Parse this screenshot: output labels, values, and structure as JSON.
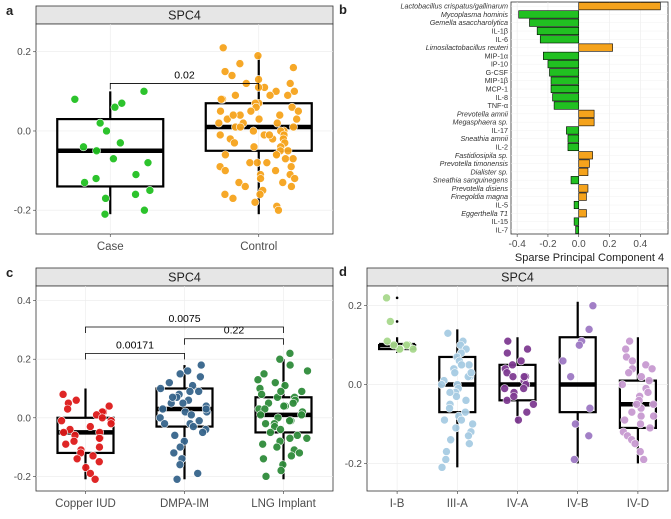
{
  "chart_data": [
    {
      "panel": "a",
      "type": "boxplot",
      "title": "SPC4",
      "categories": [
        "Case",
        "Control"
      ],
      "yticks": [
        "0.2",
        "0.0",
        "-0.2"
      ],
      "ylim": [
        -0.26,
        0.27
      ],
      "stats": [
        {
          "q1": -0.14,
          "median": -0.05,
          "q3": 0.03,
          "whisker_low": -0.21,
          "whisker_high": 0.1
        },
        {
          "q1": -0.05,
          "median": 0.01,
          "q3": 0.07,
          "whisker_low": -0.21,
          "whisker_high": 0.19
        }
      ],
      "point_colors": [
        "#21c021",
        "#f5a31c"
      ],
      "points": [
        [
          0.1,
          0.08,
          0.06,
          0.02,
          0.0,
          -0.03,
          -0.04,
          -0.05,
          -0.07,
          -0.08,
          -0.11,
          -0.13,
          -0.15,
          -0.16,
          -0.17,
          -0.2,
          -0.21,
          0.07,
          -0.12
        ],
        [
          0.21,
          0.19,
          0.17,
          0.16,
          0.15,
          0.14,
          0.13,
          0.12,
          0.12,
          0.11,
          0.1,
          0.1,
          0.09,
          0.09,
          0.08,
          0.08,
          0.07,
          0.07,
          0.06,
          0.06,
          0.05,
          0.05,
          0.04,
          0.04,
          0.03,
          0.03,
          0.02,
          0.02,
          0.02,
          0.01,
          0.01,
          0.01,
          0.0,
          0.0,
          0.0,
          -0.01,
          -0.01,
          -0.01,
          -0.02,
          -0.02,
          -0.03,
          -0.03,
          -0.04,
          -0.04,
          -0.05,
          -0.05,
          -0.06,
          -0.06,
          -0.07,
          -0.07,
          -0.08,
          -0.08,
          -0.09,
          -0.09,
          -0.1,
          -0.1,
          -0.11,
          -0.11,
          -0.12,
          -0.12,
          -0.13,
          -0.14,
          -0.14,
          -0.15,
          -0.16,
          -0.16,
          -0.17,
          -0.18,
          -0.19,
          -0.2,
          0.03,
          -0.02,
          0.05,
          -0.06,
          0.09,
          -0.13,
          0.11,
          -0.01,
          0.04,
          -0.08
        ]
      ],
      "comparisons": [
        {
          "from": 0,
          "to": 1,
          "label": "0.02",
          "y": 0.12
        }
      ]
    },
    {
      "panel": "b",
      "type": "bar",
      "orientation": "horizontal",
      "xlabel": "Sparse Principal Component 4",
      "xticks": [
        -0.4,
        -0.2,
        0.0,
        0.2,
        0.4
      ],
      "xlim": [
        -0.44,
        0.58
      ],
      "colors": {
        "negative": "#21c021",
        "positive": "#f5a31c"
      },
      "categories": [
        "Lactobacillus crispatus/gallinarum",
        "Mycoplasma hominis",
        "Gemella asaccharolytica",
        "IL-1β",
        "IL-6",
        "Limosilactobacillus reuteri",
        "MIP-1α",
        "IP-10",
        "G-CSF",
        "MIP-1β",
        "MCP-1",
        "IL-8",
        "TNF-α",
        "Prevotella amnii",
        "Megasphaera sp.",
        "IL-17",
        "Sneathia amnii",
        "IL-2",
        "Fastidiosipila sp.",
        "Prevotella timonensis",
        "Dialister sp.",
        "Sneathia sanguinegens",
        "Prevotella disiens",
        "Finegoldia magna",
        "IL-5",
        "Eggerthella T1",
        "IL-15",
        "IL-7"
      ],
      "values": [
        0.53,
        -0.39,
        -0.32,
        -0.27,
        -0.25,
        0.22,
        -0.23,
        -0.2,
        -0.19,
        -0.18,
        -0.18,
        -0.17,
        -0.16,
        0.1,
        0.1,
        -0.08,
        -0.07,
        -0.07,
        0.09,
        0.07,
        0.06,
        -0.05,
        0.06,
        0.05,
        -0.03,
        0.05,
        -0.03,
        -0.02
      ]
    },
    {
      "panel": "c",
      "type": "boxplot",
      "title": "SPC4",
      "categories": [
        "Copper IUD",
        "DMPA-IM",
        "LNG Implant"
      ],
      "yticks": [
        "0.4",
        "0.2",
        "0.0",
        "-0.2"
      ],
      "ylim": [
        -0.25,
        0.45
      ],
      "stats": [
        {
          "q1": -0.12,
          "median": -0.05,
          "q3": 0.0,
          "whisker_low": -0.21,
          "whisker_high": 0.1
        },
        {
          "q1": -0.03,
          "median": 0.03,
          "q3": 0.1,
          "whisker_low": -0.21,
          "whisker_high": 0.18
        },
        {
          "q1": -0.05,
          "median": 0.01,
          "q3": 0.07,
          "whisker_low": -0.21,
          "whisker_high": 0.2
        }
      ],
      "point_colors": [
        "#dd1a1a",
        "#36648b",
        "#2e8b3a"
      ],
      "points": [
        [
          0.08,
          0.06,
          0.05,
          0.04,
          0.03,
          0.02,
          0.02,
          0.01,
          0.0,
          -0.01,
          -0.02,
          -0.03,
          -0.04,
          -0.05,
          -0.05,
          -0.06,
          -0.07,
          -0.08,
          -0.09,
          -0.1,
          -0.11,
          -0.12,
          -0.13,
          -0.14,
          -0.15,
          -0.17,
          -0.19,
          -0.21,
          -0.01,
          -0.07
        ],
        [
          0.18,
          0.16,
          0.15,
          0.14,
          0.12,
          0.11,
          0.1,
          0.09,
          0.09,
          0.08,
          0.07,
          0.06,
          0.05,
          0.05,
          0.04,
          0.03,
          0.02,
          0.02,
          0.01,
          0.0,
          -0.01,
          -0.02,
          -0.03,
          -0.04,
          -0.05,
          -0.06,
          -0.08,
          -0.1,
          -0.12,
          -0.14,
          -0.16,
          -0.19,
          -0.21,
          0.07,
          0.03,
          -0.02
        ],
        [
          0.22,
          0.2,
          0.18,
          0.16,
          0.15,
          0.13,
          0.12,
          0.11,
          0.1,
          0.09,
          0.08,
          0.07,
          0.07,
          0.06,
          0.05,
          0.05,
          0.04,
          0.03,
          0.03,
          0.02,
          0.01,
          0.01,
          0.0,
          -0.01,
          -0.02,
          -0.02,
          -0.03,
          -0.04,
          -0.05,
          -0.06,
          -0.07,
          -0.08,
          -0.09,
          -0.1,
          -0.11,
          -0.12,
          -0.13,
          -0.14,
          -0.16,
          -0.18,
          -0.2,
          0.04,
          -0.01,
          0.09,
          -0.07
        ]
      ],
      "comparisons": [
        {
          "from": 0,
          "to": 2,
          "label": "0.0075",
          "y": 0.31
        },
        {
          "from": 0,
          "to": 1,
          "label": "0.00171",
          "y": 0.22
        },
        {
          "from": 1,
          "to": 2,
          "label": "0.22",
          "y": 0.27
        }
      ]
    },
    {
      "panel": "d",
      "type": "boxplot",
      "title": "SPC4",
      "categories": [
        "I-B",
        "III-A",
        "IV-A",
        "IV-B",
        "IV-D"
      ],
      "yticks": [
        "0.2",
        "0.0",
        "-0.2"
      ],
      "ylim": [
        -0.27,
        0.25
      ],
      "stats": [
        {
          "q1": 0.09,
          "median": 0.1,
          "q3": 0.1,
          "whisker_low": 0.08,
          "whisker_high": 0.12
        },
        {
          "q1": -0.07,
          "median": 0.0,
          "q3": 0.07,
          "whisker_low": -0.21,
          "whisker_high": 0.14
        },
        {
          "q1": -0.04,
          "median": 0.0,
          "q3": 0.05,
          "whisker_low": -0.1,
          "whisker_high": 0.12
        },
        {
          "q1": -0.07,
          "median": 0.0,
          "q3": 0.12,
          "whisker_low": -0.2,
          "whisker_high": 0.21
        },
        {
          "q1": -0.11,
          "median": -0.05,
          "q3": 0.01,
          "whisker_low": -0.2,
          "whisker_high": 0.12
        }
      ],
      "outliers": [
        [
          0.22,
          0.16
        ],
        [],
        [],
        [],
        []
      ],
      "point_colors": [
        "#a8d88c",
        "#a6cbe3",
        "#7e3b91",
        "#9d78c3",
        "#c79ad1"
      ],
      "points": [
        [
          0.22,
          0.16,
          0.11,
          0.1,
          0.1,
          0.09,
          0.09,
          0.09,
          0.1
        ],
        [
          0.13,
          0.11,
          0.1,
          0.09,
          0.08,
          0.07,
          0.06,
          0.05,
          0.04,
          0.03,
          0.02,
          0.02,
          0.01,
          0.0,
          0.0,
          -0.01,
          -0.02,
          -0.03,
          -0.04,
          -0.05,
          -0.06,
          -0.07,
          -0.08,
          -0.09,
          -0.1,
          -0.11,
          -0.12,
          -0.13,
          -0.14,
          -0.15,
          -0.17,
          -0.19,
          -0.21,
          0.05,
          -0.02,
          0.03,
          -0.09
        ],
        [
          0.11,
          0.09,
          0.08,
          0.06,
          0.05,
          0.04,
          0.03,
          0.02,
          0.02,
          0.01,
          0.0,
          -0.01,
          -0.02,
          -0.03,
          -0.04,
          -0.05,
          -0.07,
          -0.09,
          0.02,
          -0.01
        ],
        [
          0.2,
          0.14,
          0.11,
          0.1,
          0.06,
          0.02,
          -0.06,
          -0.1,
          -0.13,
          -0.19
        ],
        [
          0.11,
          0.09,
          0.07,
          0.06,
          0.05,
          0.04,
          0.03,
          0.02,
          0.01,
          0.0,
          -0.01,
          -0.02,
          -0.03,
          -0.04,
          -0.05,
          -0.06,
          -0.07,
          -0.08,
          -0.09,
          -0.1,
          -0.11,
          -0.12,
          -0.13,
          -0.14,
          -0.15,
          -0.17,
          -0.19,
          0.04,
          -0.05,
          -0.08
        ]
      ]
    }
  ]
}
